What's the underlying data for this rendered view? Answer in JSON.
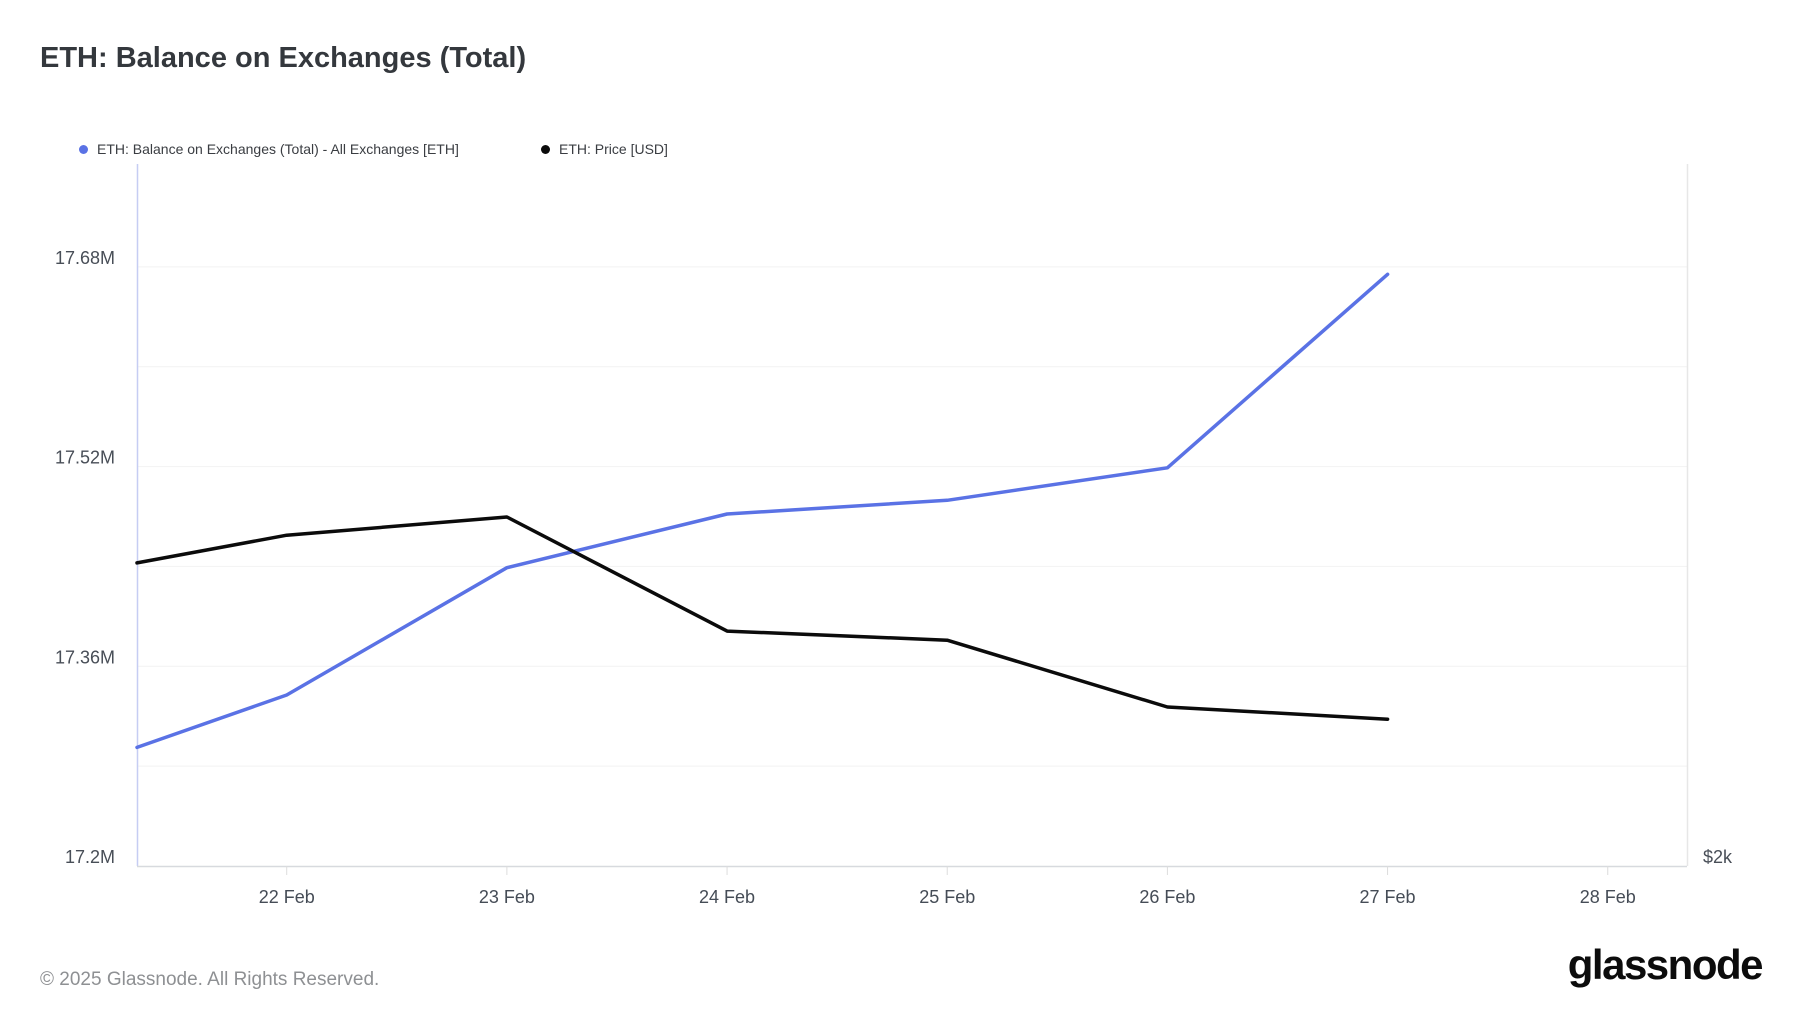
{
  "page": {
    "title": "ETH: Balance on Exchanges (Total)",
    "footer": "© 2025 Glassnode. All Rights Reserved.",
    "brand": "glassnode"
  },
  "legend": [
    {
      "label": "ETH: Balance on Exchanges (Total) - All Exchanges [ETH]",
      "color": "#5a72e5"
    },
    {
      "label": "ETH: Price [USD]",
      "color": "#0b0b0b"
    }
  ],
  "chart_data": {
    "type": "line",
    "title": "ETH: Balance on Exchanges (Total)",
    "grid": true,
    "legend_position": "top-left",
    "x_axis": {
      "tick_labels": [
        "22 Feb",
        "23 Feb",
        "24 Feb",
        "25 Feb",
        "26 Feb",
        "27 Feb",
        "28 Feb"
      ],
      "tick_days": [
        22,
        23,
        24,
        25,
        26,
        27,
        28
      ],
      "domain_days": [
        21.32,
        28.36
      ]
    },
    "left_axis": {
      "tick_labels": [
        "17.68M",
        "17.52M",
        "17.36M",
        "17.2M"
      ],
      "tick_values_m": [
        17.68,
        17.52,
        17.36,
        17.2
      ],
      "gridline_values_m": [
        17.28,
        17.36,
        17.44,
        17.52,
        17.6,
        17.68
      ],
      "domain_m": [
        17.2,
        17.7624
      ]
    },
    "right_axis": {
      "visible_label": "$2k",
      "label_value_usd": 2000,
      "domain_usd_estimate": [
        2000,
        3545
      ]
    },
    "series": [
      {
        "name": "ETH: Balance on Exchanges (Total) - All Exchanges [ETH]",
        "axis": "left",
        "color": "#5a72e5",
        "x_days": [
          21.32,
          22,
          23,
          24,
          25,
          26,
          27
        ],
        "values_m_eth": [
          17.295,
          17.337,
          17.439,
          17.482,
          17.493,
          17.519,
          17.674
        ]
      },
      {
        "name": "ETH: Price [USD]",
        "axis": "right",
        "color": "#0b0b0b",
        "x_days": [
          21.32,
          22,
          23,
          24,
          25,
          26,
          27
        ],
        "values_usd": [
          2667,
          2728,
          2768,
          2517,
          2497,
          2350,
          2323
        ]
      }
    ]
  }
}
